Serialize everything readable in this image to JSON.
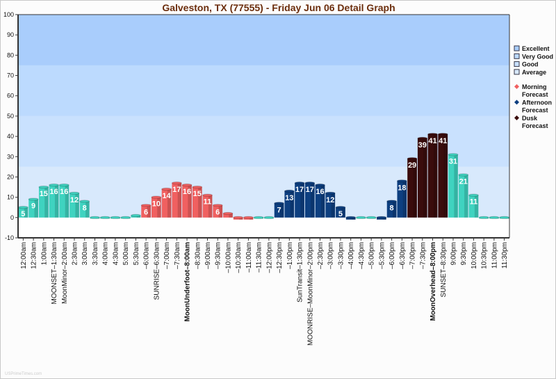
{
  "title": "Galveston, TX (77555) - Friday Jun 06 Detail Graph",
  "watermark": "USPrimeTimes.com",
  "legend": {
    "bands": [
      "Excellent",
      "Very Good",
      "Good",
      "Average"
    ],
    "forecasts": [
      {
        "label1": "Morning",
        "label2": "Forecast",
        "color": "#f06060"
      },
      {
        "label1": "Afternoon",
        "label2": "Forecast",
        "color": "#0d3f80"
      },
      {
        "label1": "Dusk",
        "label2": "Forecast",
        "color": "#3a0c0c"
      }
    ]
  },
  "chart_data": {
    "type": "bar",
    "title": "Galveston, TX (77555) - Friday Jun 06 Detail Graph",
    "ylim": [
      -10,
      100
    ],
    "yticks": [
      -10,
      0,
      10,
      20,
      30,
      40,
      50,
      60,
      70,
      80,
      90,
      100
    ],
    "band_colors": {
      "Excellent": "#a9cdfc",
      "Very Good": "#bcdafe",
      "Good": "#c9e1fe",
      "Average": "#d8e9fc"
    },
    "series_colors": {
      "base": "#3fd3c0",
      "morning": "#f06060",
      "afternoon": "#0d3f80",
      "dusk": "#3a0c0c"
    },
    "categories": [
      "12:00am",
      "12:30am",
      "1:00am",
      "MOONSET–1:30am",
      "MoonMinor–2:00am",
      "2:30am",
      "3:00am",
      "3:30am",
      "4:00am",
      "4:30am",
      "5:00am",
      "5:30am",
      "–6:00am",
      "SUNRISE–6:30am",
      "–7:00am",
      "–7:30am",
      "MoonUnderfoot–8:00am",
      "–8:30am",
      "–9:00am",
      "–9:30am",
      "–10:00am",
      "–10:30am",
      "–11:00am",
      "–11:30am",
      "–12:00pm",
      "–12:30pm",
      "–1:00pm",
      "SunTransit–1:30pm",
      "MOONRISE–MoonMinor–2:00pm",
      "–2:30pm",
      "–3:00pm",
      "–3:30pm",
      "–4:00pm",
      "–4:30pm",
      "–5:00pm",
      "–5:30pm",
      "–6:00pm",
      "–6:30pm",
      "–7:00pm",
      "–7:30pm",
      "MoonOverhead–8:00pm",
      "SUNSET–8:30pm",
      "9:00pm",
      "9:30pm",
      "10:00pm",
      "10:30pm",
      "11:00pm",
      "11:30pm"
    ],
    "bold_categories": [
      16,
      40
    ],
    "values": [
      5,
      9,
      15,
      16,
      16,
      12,
      8,
      0,
      0,
      0,
      0,
      1,
      6,
      10,
      14,
      17,
      16,
      15,
      11,
      6,
      2,
      -1,
      -1,
      0,
      0,
      7,
      13,
      17,
      17,
      16,
      12,
      5,
      -1,
      0,
      0,
      -1,
      8,
      18,
      29,
      39,
      41,
      41,
      31,
      21,
      11,
      0,
      0,
      0
    ],
    "series": [
      "base",
      "base",
      "base",
      "base",
      "base",
      "base",
      "base",
      "base",
      "base",
      "base",
      "base",
      "base",
      "morning",
      "morning",
      "morning",
      "morning",
      "morning",
      "morning",
      "morning",
      "morning",
      "morning",
      "morning",
      "morning",
      "base",
      "base",
      "afternoon",
      "afternoon",
      "afternoon",
      "afternoon",
      "afternoon",
      "afternoon",
      "afternoon",
      "afternoon",
      "base",
      "base",
      "afternoon",
      "afternoon",
      "afternoon",
      "dusk",
      "dusk",
      "dusk",
      "dusk",
      "base",
      "base",
      "base",
      "base",
      "base",
      "base"
    ],
    "label_min": 5
  }
}
